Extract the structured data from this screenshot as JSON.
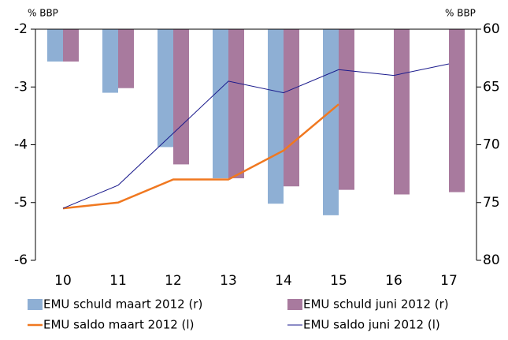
{
  "chart_data": {
    "type": "bar-line",
    "categories": [
      "10",
      "11",
      "12",
      "13",
      "14",
      "15",
      "16",
      "17"
    ],
    "ylabel": "% BBP",
    "y2label": "% BBP",
    "ylim": [
      -6,
      -2
    ],
    "yticks": [
      -6,
      -5,
      -4,
      -3,
      -2
    ],
    "y2lim": [
      80,
      60
    ],
    "y2ticks": [
      60,
      65,
      70,
      75,
      80
    ],
    "series": [
      {
        "name": "EMU schuld maart 2012 (r)",
        "type": "bar",
        "axis": "y2",
        "color": "#8eafd4",
        "values": [
          62.8,
          65.5,
          70.2,
          72.9,
          75.1,
          76.1,
          null,
          null
        ]
      },
      {
        "name": "EMU schuld juni 2012 (r)",
        "type": "bar",
        "axis": "y2",
        "color": "#a87a9e",
        "values": [
          62.8,
          65.1,
          71.7,
          72.9,
          73.6,
          73.9,
          74.3,
          74.1
        ]
      },
      {
        "name": "EMU saldo maart 2012 (l)",
        "type": "line",
        "color": "#f07820",
        "width": 2.5,
        "values": [
          -5.1,
          -5.0,
          -4.6,
          -4.6,
          -4.1,
          -3.3,
          null,
          null
        ]
      },
      {
        "name": "EMU saldo juni 2012 (l)",
        "type": "line",
        "color": "#1a1a8c",
        "width": 1,
        "values": [
          -5.1,
          -4.7,
          -3.8,
          -2.9,
          -3.1,
          -2.7,
          -2.8,
          -2.6
        ]
      }
    ]
  }
}
